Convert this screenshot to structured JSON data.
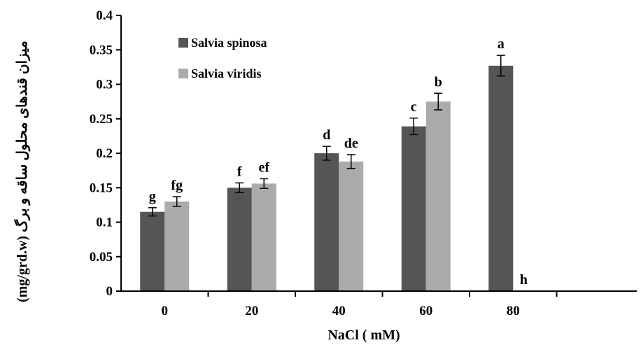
{
  "chart_data": {
    "type": "bar",
    "xlabel": "NaCl ( mM)",
    "ylabel": "(mg/grd.w) میزان قندهای محلول ساقه و برگ",
    "categories": [
      "0",
      "20",
      "40",
      "60",
      "80"
    ],
    "ylim": [
      0,
      0.4
    ],
    "yticks": [
      "0",
      "0.05",
      "0.1",
      "0.15",
      "0.2",
      "0.25",
      "0.3",
      "0.35",
      "0.4"
    ],
    "legend_position": "top-left",
    "grid": false,
    "series": [
      {
        "name": "Salvia spinosa",
        "color": "#555555",
        "values": [
          0.115,
          0.15,
          0.2,
          0.239,
          0.327
        ],
        "errors": [
          0.006,
          0.007,
          0.01,
          0.012,
          0.015
        ],
        "labels": [
          "g",
          "f",
          "d",
          "c",
          "a"
        ]
      },
      {
        "name": "Salvia viridis",
        "color": "#ababab",
        "values": [
          0.13,
          0.156,
          0.188,
          0.275,
          0
        ],
        "errors": [
          0.007,
          0.007,
          0.01,
          0.012,
          0
        ],
        "labels": [
          "fg",
          "ef",
          "de",
          "b",
          "h"
        ]
      }
    ]
  }
}
